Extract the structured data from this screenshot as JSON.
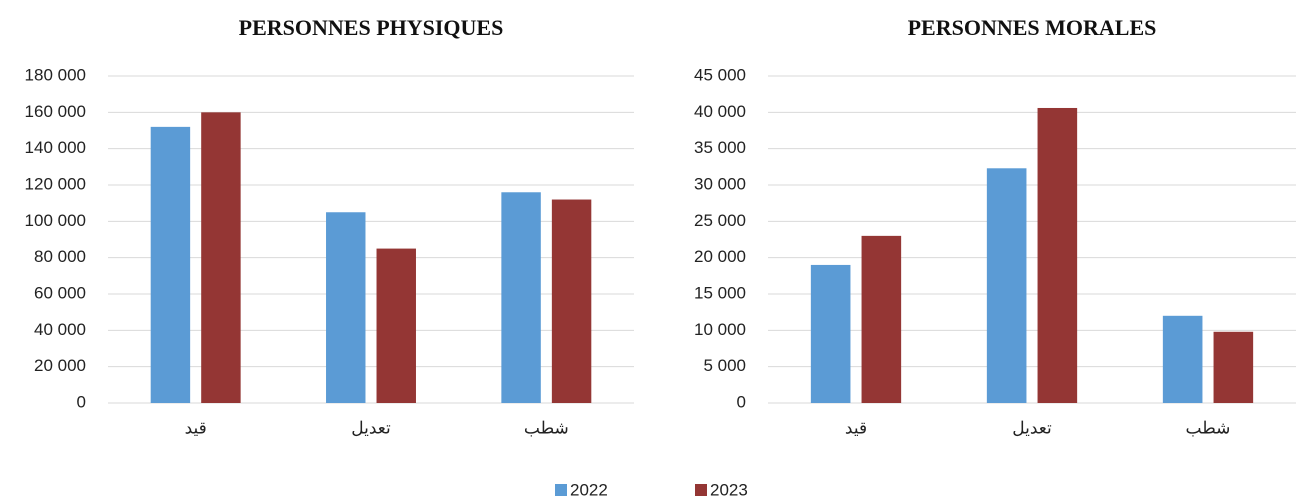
{
  "chart_data": [
    {
      "type": "bar",
      "title": "PERSONNES PHYSIQUES",
      "categories": [
        "قيد",
        "تعديل",
        "شطب"
      ],
      "series": [
        {
          "name": "2022",
          "color": "#5b9bd5",
          "values": [
            152000,
            105000,
            116000
          ]
        },
        {
          "name": "2023",
          "color": "#943634",
          "values": [
            160000,
            85000,
            112000
          ]
        }
      ],
      "ylim": [
        0,
        180000
      ],
      "yticks": [
        0,
        {
          "value": 20000,
          "label": "20 000"
        },
        {
          "value": 40000,
          "label": "40 000"
        },
        {
          "value": 60000,
          "label": "60 000"
        },
        {
          "value": 80000,
          "label": "80 000"
        },
        {
          "value": 100000,
          "label": "100 000"
        },
        {
          "value": 120000,
          "label": "120 000"
        },
        {
          "value": 140000,
          "label": "140 000"
        },
        {
          "value": 160000,
          "label": "160 000"
        },
        {
          "value": 180000,
          "label": "180 000"
        }
      ],
      "grid": true
    },
    {
      "type": "bar",
      "title": "PERSONNES MORALES",
      "categories": [
        "قيد",
        "تعديل",
        "شطب"
      ],
      "series": [
        {
          "name": "2022",
          "color": "#5b9bd5",
          "values": [
            19000,
            32300,
            12000
          ]
        },
        {
          "name": "2023",
          "color": "#943634",
          "values": [
            23000,
            40600,
            9800
          ]
        }
      ],
      "ylim": [
        0,
        45000
      ],
      "yticks": [
        0,
        {
          "value": 5000,
          "label": "5 000"
        },
        {
          "value": 10000,
          "label": "10 000"
        },
        {
          "value": 15000,
          "label": "15 000"
        },
        {
          "value": 20000,
          "label": "20 000"
        },
        {
          "value": 25000,
          "label": "25 000"
        },
        {
          "value": 30000,
          "label": "30 000"
        },
        {
          "value": 35000,
          "label": "35 000"
        },
        {
          "value": 40000,
          "label": "40 000"
        },
        {
          "value": 45000,
          "label": "45 000"
        }
      ],
      "grid": true
    }
  ]
}
